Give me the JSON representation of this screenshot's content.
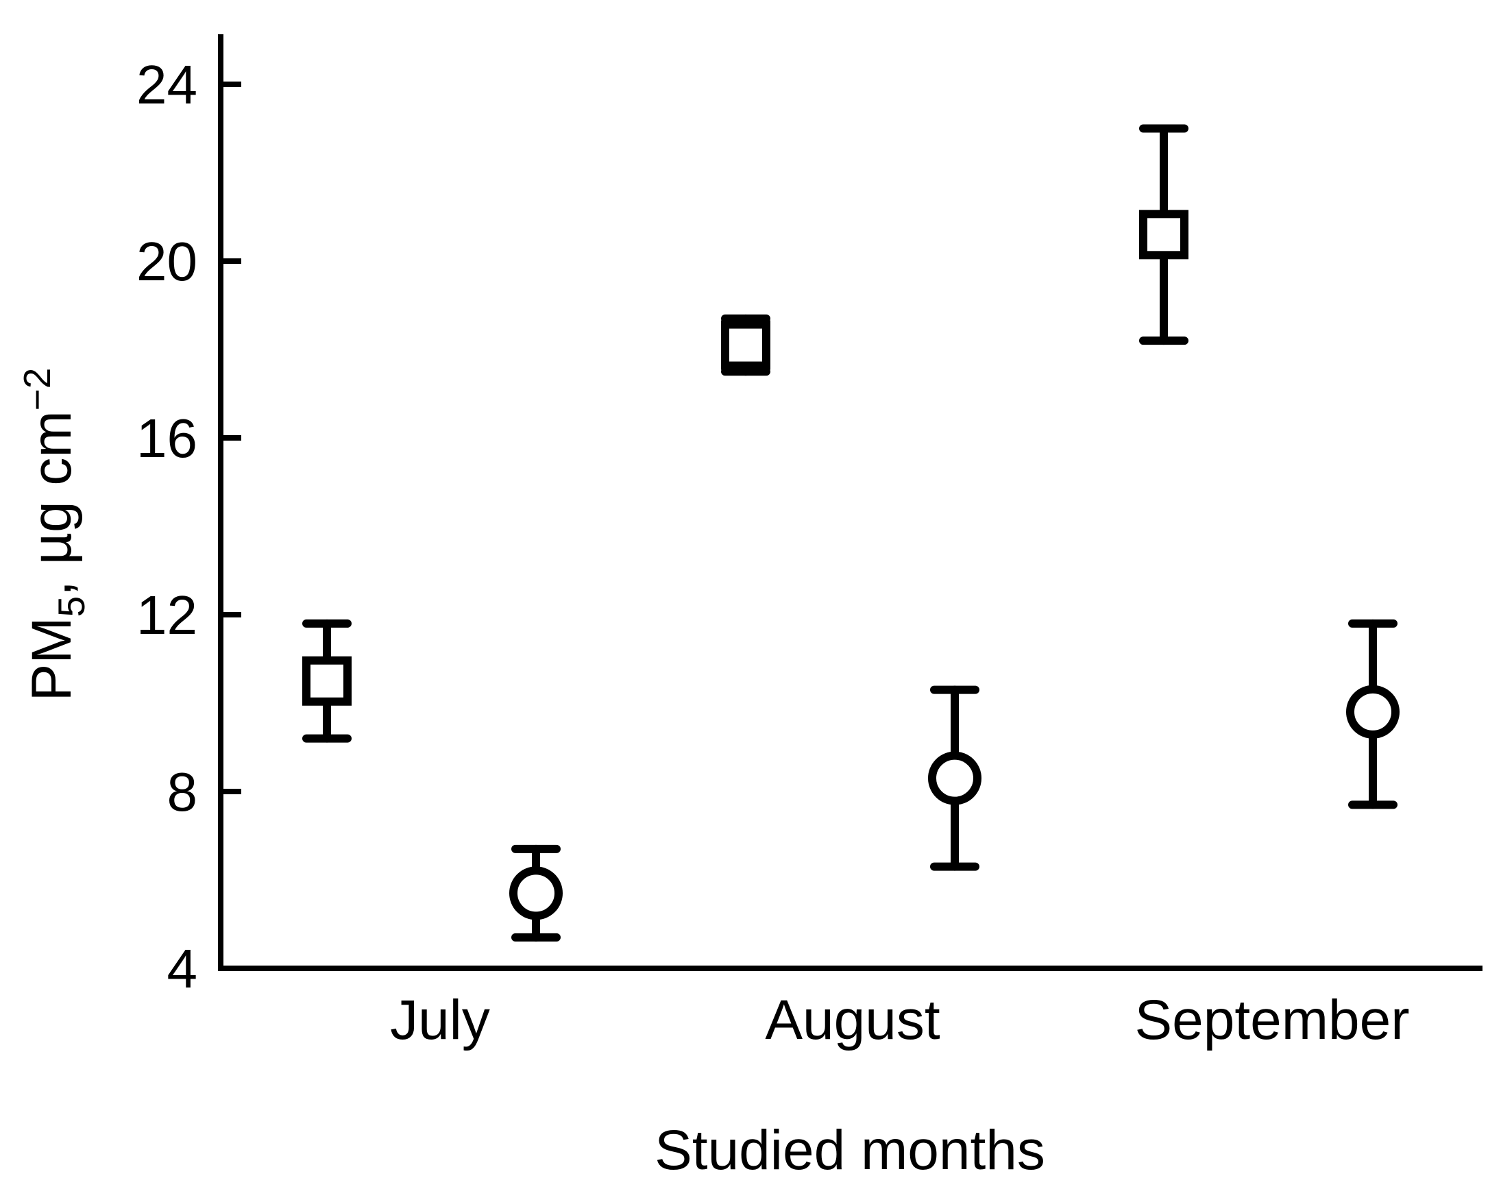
{
  "page": {
    "background": "#ffffff",
    "foreground": "#000000"
  },
  "chart_data": {
    "type": "scatter",
    "title": "",
    "xlabel": "Studied months",
    "ylabel": "PM5, µg cm−2",
    "ylabel_parts": {
      "base": "PM",
      "sub": "5",
      "mid": ", µg cm",
      "sup": "−2"
    },
    "categories": [
      "July",
      "August",
      "September"
    ],
    "yticks": [
      4,
      8,
      12,
      16,
      20,
      24
    ],
    "ylim": [
      4,
      25.2
    ],
    "grid": false,
    "legend": false,
    "marker_color": "#000000",
    "marker_fill": "#ffffff",
    "series": [
      {
        "name": "square-series",
        "marker": "square",
        "values": [
          10.5,
          18.1,
          20.6
        ],
        "upper": [
          11.8,
          18.7,
          23.0
        ],
        "lower": [
          9.2,
          17.5,
          18.2
        ]
      },
      {
        "name": "circle-series",
        "marker": "circle",
        "values": [
          5.7,
          8.3,
          9.8
        ],
        "upper": [
          6.7,
          10.3,
          11.8
        ],
        "lower": [
          4.7,
          6.3,
          7.7
        ]
      }
    ]
  }
}
